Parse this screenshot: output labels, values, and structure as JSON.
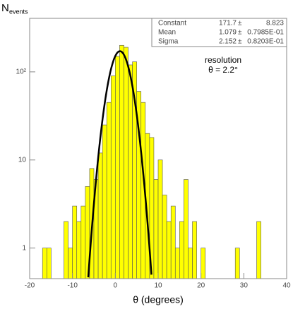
{
  "chart_data": {
    "type": "histogram",
    "y_label": "N",
    "y_label_sub": "events",
    "x_label": "θ  (degrees)",
    "annotations": [
      "resolution",
      "θ = 2.2°"
    ],
    "bins": [
      -17,
      -16,
      -15,
      -14,
      -13,
      -12,
      -11,
      -10,
      -9,
      -8,
      -7,
      -6,
      -5,
      -4,
      -3,
      -2,
      -1,
      0,
      1,
      2,
      3,
      4,
      5,
      6,
      7,
      8,
      9,
      10,
      11,
      12,
      13,
      14,
      15,
      16,
      17,
      18,
      19,
      20,
      21,
      22,
      23,
      24,
      25,
      26,
      27,
      28,
      29,
      30,
      31,
      32,
      33,
      34
    ],
    "counts": [
      1,
      1,
      0,
      0,
      0,
      2,
      1,
      3,
      2,
      3,
      5,
      8,
      6,
      12,
      25,
      45,
      90,
      150,
      200,
      190,
      120,
      130,
      60,
      45,
      20,
      18,
      6,
      10,
      4,
      2,
      3,
      1,
      2,
      6,
      1,
      2,
      0,
      1,
      0,
      0,
      0,
      0,
      0,
      0,
      0,
      1,
      0,
      0,
      0,
      0,
      2
    ],
    "color": "#ffff00",
    "edge_color": "#555555",
    "fit": {
      "type": "gaussian",
      "color": "#000000",
      "params": [
        {
          "name": "Constant",
          "value": 171.7,
          "error": 8.823
        },
        {
          "name": "Mean",
          "value": 1.079,
          "error": {
            "value": 0.07985,
            "label": "0.7985E-01"
          }
        },
        {
          "name": "Sigma",
          "value": 2.152,
          "error": {
            "value": 0.08203,
            "label": "0.8203E-01"
          }
        }
      ]
    },
    "xlim": [
      -20,
      40
    ],
    "xticks": [
      -20,
      -10,
      0,
      10,
      20,
      30,
      40
    ],
    "ylim": [
      0.45,
      405
    ],
    "ylog": true,
    "yticks": [
      1,
      10,
      {
        "value": 100,
        "label": "10²"
      }
    ]
  }
}
